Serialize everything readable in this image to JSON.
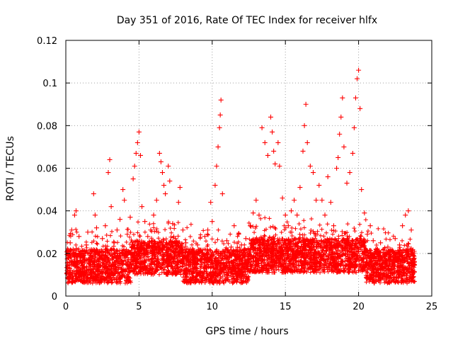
{
  "chart_data": {
    "type": "scatter",
    "title": "Day 351 of 2016, Rate Of TEC Index for receiver hlfx",
    "xlabel": "GPS time / hours",
    "ylabel": "ROTI / TECUs",
    "xlim": [
      0,
      25
    ],
    "ylim": [
      0,
      0.12
    ],
    "xticks": [
      0,
      5,
      10,
      15,
      20,
      25
    ],
    "xtick_labels": [
      "0",
      "5",
      "10",
      "15",
      "20",
      "25"
    ],
    "yticks": [
      0,
      0.02,
      0.04,
      0.06,
      0.08,
      0.1,
      0.12
    ],
    "ytick_labels": [
      "0",
      "0.02",
      "0.04",
      "0.06",
      "0.08",
      "0.1",
      "0.12"
    ],
    "grid": true,
    "legend": "none",
    "marker": "plus",
    "marker_color": "#ff0000",
    "series": [
      {
        "name": "ROTI",
        "points": [
          [
            0.1,
            0.012
          ],
          [
            0.2,
            0.018
          ],
          [
            0.3,
            0.025
          ],
          [
            0.4,
            0.031
          ],
          [
            0.5,
            0.022
          ],
          [
            0.6,
            0.038
          ],
          [
            0.7,
            0.04
          ],
          [
            0.8,
            0.015
          ],
          [
            0.9,
            0.028
          ],
          [
            1.0,
            0.011
          ],
          [
            1.2,
            0.019
          ],
          [
            1.4,
            0.024
          ],
          [
            1.5,
            0.03
          ],
          [
            1.7,
            0.014
          ],
          [
            1.9,
            0.048
          ],
          [
            2.0,
            0.038
          ],
          [
            2.1,
            0.032
          ],
          [
            2.3,
            0.021
          ],
          [
            2.5,
            0.027
          ],
          [
            2.7,
            0.033
          ],
          [
            2.9,
            0.058
          ],
          [
            3.0,
            0.064
          ],
          [
            3.1,
            0.042
          ],
          [
            3.3,
            0.025
          ],
          [
            3.5,
            0.031
          ],
          [
            3.7,
            0.036
          ],
          [
            3.9,
            0.05
          ],
          [
            4.0,
            0.045
          ],
          [
            4.2,
            0.029
          ],
          [
            4.4,
            0.037
          ],
          [
            4.6,
            0.055
          ],
          [
            4.7,
            0.061
          ],
          [
            4.8,
            0.067
          ],
          [
            4.9,
            0.072
          ],
          [
            5.0,
            0.077
          ],
          [
            5.1,
            0.066
          ],
          [
            5.2,
            0.042
          ],
          [
            5.4,
            0.035
          ],
          [
            5.6,
            0.028
          ],
          [
            5.8,
            0.031
          ],
          [
            6.0,
            0.038
          ],
          [
            6.2,
            0.045
          ],
          [
            6.4,
            0.067
          ],
          [
            6.5,
            0.063
          ],
          [
            6.6,
            0.058
          ],
          [
            6.7,
            0.052
          ],
          [
            6.8,
            0.048
          ],
          [
            7.0,
            0.061
          ],
          [
            7.1,
            0.054
          ],
          [
            7.3,
            0.034
          ],
          [
            7.5,
            0.027
          ],
          [
            7.7,
            0.044
          ],
          [
            7.8,
            0.051
          ],
          [
            8.0,
            0.031
          ],
          [
            8.2,
            0.025
          ],
          [
            8.5,
            0.022
          ],
          [
            8.8,
            0.019
          ],
          [
            9.0,
            0.024
          ],
          [
            9.2,
            0.021
          ],
          [
            9.5,
            0.028
          ],
          [
            9.7,
            0.031
          ],
          [
            9.9,
            0.044
          ],
          [
            10.0,
            0.035
          ],
          [
            10.2,
            0.052
          ],
          [
            10.3,
            0.061
          ],
          [
            10.4,
            0.07
          ],
          [
            10.5,
            0.079
          ],
          [
            10.55,
            0.085
          ],
          [
            10.6,
            0.092
          ],
          [
            10.7,
            0.048
          ],
          [
            11.0,
            0.026
          ],
          [
            11.3,
            0.023
          ],
          [
            11.5,
            0.033
          ],
          [
            11.8,
            0.029
          ],
          [
            12.0,
            0.024
          ],
          [
            12.3,
            0.027
          ],
          [
            12.6,
            0.033
          ],
          [
            12.8,
            0.039
          ],
          [
            13.0,
            0.045
          ],
          [
            13.2,
            0.038
          ],
          [
            13.4,
            0.079
          ],
          [
            13.6,
            0.072
          ],
          [
            13.8,
            0.066
          ],
          [
            14.0,
            0.084
          ],
          [
            14.1,
            0.077
          ],
          [
            14.2,
            0.068
          ],
          [
            14.3,
            0.062
          ],
          [
            14.5,
            0.072
          ],
          [
            14.6,
            0.061
          ],
          [
            14.8,
            0.046
          ],
          [
            15.0,
            0.038
          ],
          [
            15.2,
            0.033
          ],
          [
            15.4,
            0.04
          ],
          [
            15.6,
            0.045
          ],
          [
            15.8,
            0.038
          ],
          [
            16.0,
            0.051
          ],
          [
            16.2,
            0.068
          ],
          [
            16.3,
            0.08
          ],
          [
            16.4,
            0.09
          ],
          [
            16.5,
            0.072
          ],
          [
            16.7,
            0.061
          ],
          [
            16.9,
            0.058
          ],
          [
            17.1,
            0.045
          ],
          [
            17.3,
            0.052
          ],
          [
            17.5,
            0.045
          ],
          [
            17.7,
            0.038
          ],
          [
            17.9,
            0.056
          ],
          [
            18.1,
            0.044
          ],
          [
            18.3,
            0.033
          ],
          [
            18.5,
            0.06
          ],
          [
            18.6,
            0.065
          ],
          [
            18.7,
            0.076
          ],
          [
            18.8,
            0.084
          ],
          [
            18.9,
            0.093
          ],
          [
            19.0,
            0.07
          ],
          [
            19.2,
            0.053
          ],
          [
            19.4,
            0.058
          ],
          [
            19.6,
            0.067
          ],
          [
            19.7,
            0.079
          ],
          [
            19.8,
            0.093
          ],
          [
            19.9,
            0.102
          ],
          [
            20.0,
            0.106
          ],
          [
            20.1,
            0.088
          ],
          [
            20.2,
            0.05
          ],
          [
            20.4,
            0.039
          ],
          [
            20.6,
            0.029
          ],
          [
            20.8,
            0.033
          ],
          [
            21.0,
            0.026
          ],
          [
            21.2,
            0.021
          ],
          [
            21.5,
            0.025
          ],
          [
            21.8,
            0.019
          ],
          [
            22.0,
            0.023
          ],
          [
            22.3,
            0.021
          ],
          [
            22.5,
            0.027
          ],
          [
            22.8,
            0.024
          ],
          [
            23.0,
            0.033
          ],
          [
            23.2,
            0.038
          ],
          [
            23.4,
            0.04
          ],
          [
            23.6,
            0.031
          ],
          [
            23.8,
            0.016
          ]
        ]
      }
    ]
  }
}
